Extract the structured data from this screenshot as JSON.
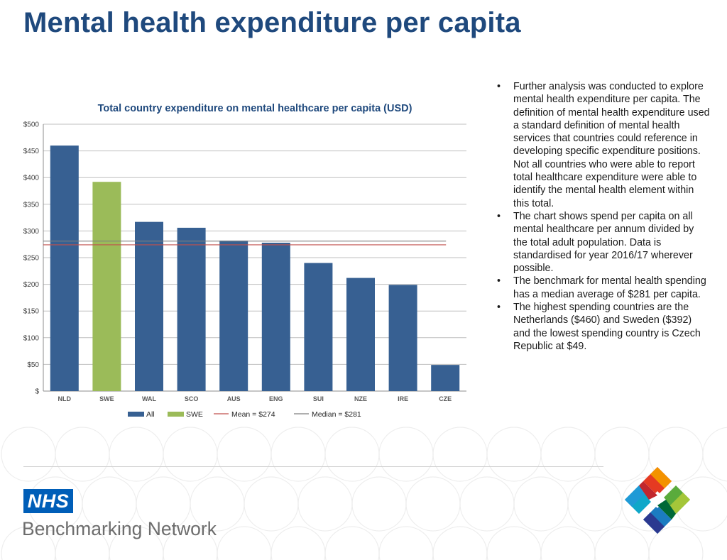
{
  "page": {
    "title": "Mental health expenditure per capita"
  },
  "bullets": [
    "Further analysis was conducted to explore mental health expenditure per capita. The definition of mental health expenditure used a standard definition of mental health services that countries could reference in developing specific expenditure positions. Not all countries who were able to report total healthcare expenditure were able to identify the mental health element within this total.",
    "The chart shows spend per capita on all mental healthcare per annum divided by the total adult population. Data is standardised for year 2016/17 wherever possible.",
    "The benchmark for mental health spending has a median average of $281 per capita.",
    "The highest spending countries are the Netherlands ($460) and Sweden ($392) and the lowest spending country is Czech Republic  at $49."
  ],
  "footer": {
    "nhs_label": "NHS",
    "network_name": "Benchmarking Network",
    "logo_icon": "benchmarking-network-logo"
  },
  "chart_data": {
    "type": "bar",
    "title": "Total country expenditure  on mental healthcare  per capita  (USD)",
    "xlabel": "",
    "ylabel": "",
    "ylim": [
      0,
      500
    ],
    "y_ticks": [
      "$",
      "$50",
      "$100",
      "$150",
      "$200",
      "$250",
      "$300",
      "$350",
      "$400",
      "$450",
      "$500"
    ],
    "grid": true,
    "legend_position": "bottom",
    "categories": [
      "NLD",
      "SWE",
      "WAL",
      "SCO",
      "AUS",
      "ENG",
      "SUI",
      "NZE",
      "IRE",
      "CZE"
    ],
    "values": [
      460,
      392,
      317,
      306,
      282,
      278,
      240,
      212,
      199,
      49
    ],
    "highlight": [
      "SWE"
    ],
    "colors": {
      "all": "#376092",
      "highlight": "#9bbb59",
      "mean": "#c0504d",
      "median": "#7f7f7f"
    },
    "reference_lines": [
      {
        "name": "Mean = $274",
        "value": 274,
        "color": "#c0504d"
      },
      {
        "name": "Median = $281",
        "value": 281,
        "color": "#7f7f7f"
      }
    ],
    "legend": [
      {
        "label": "All",
        "kind": "bar",
        "color": "#376092"
      },
      {
        "label": "SWE",
        "kind": "bar",
        "color": "#9bbb59"
      },
      {
        "label": "Mean = $274",
        "kind": "line",
        "color": "#c0504d"
      },
      {
        "label": "Median = $281",
        "kind": "line",
        "color": "#7f7f7f"
      }
    ]
  }
}
